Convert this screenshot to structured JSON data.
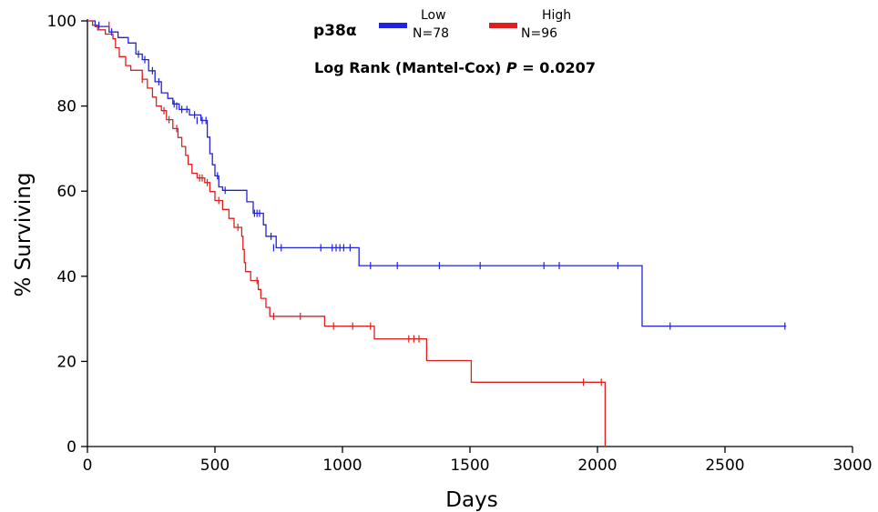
{
  "chart_data": {
    "type": "line",
    "subtype": "kaplan-meier",
    "xlabel": "Days",
    "ylabel": "% Surviving",
    "xlim": [
      0,
      3000
    ],
    "ylim": [
      0,
      100
    ],
    "xticks": [
      0,
      500,
      1000,
      1500,
      2000,
      2500,
      3000
    ],
    "yticks": [
      0,
      20,
      40,
      60,
      80,
      100
    ],
    "legend": {
      "title": "p38α",
      "placement": "top-center"
    },
    "annotation": {
      "prefix": "Log Rank (Mantel-Cox) ",
      "p_symbol": "P",
      "value": " = 0.0207"
    },
    "series": [
      {
        "name": "Low",
        "n_label": "N=78",
        "color": "#2222dd",
        "steps": [
          [
            0,
            100
          ],
          [
            30,
            98.7
          ],
          [
            85,
            97.4
          ],
          [
            120,
            96.1
          ],
          [
            160,
            94.8
          ],
          [
            190,
            92.2
          ],
          [
            215,
            90.9
          ],
          [
            240,
            88.3
          ],
          [
            265,
            85.7
          ],
          [
            290,
            83.1
          ],
          [
            315,
            81.8
          ],
          [
            335,
            80.5
          ],
          [
            360,
            79.2
          ],
          [
            400,
            77.9
          ],
          [
            445,
            76.6
          ],
          [
            470,
            72.7
          ],
          [
            480,
            68.8
          ],
          [
            490,
            66.2
          ],
          [
            500,
            63.6
          ],
          [
            515,
            61.0
          ],
          [
            530,
            60.2
          ],
          [
            625,
            57.5
          ],
          [
            650,
            54.8
          ],
          [
            690,
            52.1
          ],
          [
            700,
            49.4
          ],
          [
            740,
            46.7
          ],
          [
            1065,
            42.5
          ],
          [
            2175,
            42.5
          ],
          [
            2175,
            28.3
          ],
          [
            2740,
            28.3
          ]
        ],
        "censored": [
          [
            45,
            99
          ],
          [
            95,
            97.4
          ],
          [
            200,
            92.2
          ],
          [
            225,
            90.9
          ],
          [
            255,
            88.3
          ],
          [
            280,
            85.7
          ],
          [
            340,
            80.5
          ],
          [
            350,
            80
          ],
          [
            370,
            79.2
          ],
          [
            390,
            79.2
          ],
          [
            420,
            77.9
          ],
          [
            430,
            76.6
          ],
          [
            450,
            76.6
          ],
          [
            465,
            76.6
          ],
          [
            510,
            63.6
          ],
          [
            540,
            60.2
          ],
          [
            655,
            54.8
          ],
          [
            665,
            54.8
          ],
          [
            675,
            54.8
          ],
          [
            720,
            49.4
          ],
          [
            730,
            46.7
          ],
          [
            760,
            46.7
          ],
          [
            915,
            46.7
          ],
          [
            960,
            46.7
          ],
          [
            975,
            46.7
          ],
          [
            990,
            46.7
          ],
          [
            1005,
            46.7
          ],
          [
            1030,
            46.7
          ],
          [
            1110,
            42.5
          ],
          [
            1215,
            42.5
          ],
          [
            1380,
            42.5
          ],
          [
            1540,
            42.5
          ],
          [
            1790,
            42.5
          ],
          [
            1850,
            42.5
          ],
          [
            2080,
            42.5
          ],
          [
            2285,
            28.3
          ],
          [
            2735,
            28.3
          ]
        ]
      },
      {
        "name": "High",
        "n_label": "N=96",
        "color": "#dd1f1f",
        "steps": [
          [
            0,
            100
          ],
          [
            20,
            99
          ],
          [
            40,
            97.9
          ],
          [
            70,
            96.9
          ],
          [
            100,
            95.8
          ],
          [
            110,
            93.7
          ],
          [
            125,
            91.6
          ],
          [
            150,
            89.5
          ],
          [
            170,
            88.4
          ],
          [
            215,
            86.3
          ],
          [
            235,
            84.2
          ],
          [
            255,
            82.1
          ],
          [
            270,
            80.0
          ],
          [
            290,
            78.9
          ],
          [
            310,
            76.8
          ],
          [
            335,
            74.7
          ],
          [
            355,
            72.6
          ],
          [
            370,
            70.5
          ],
          [
            385,
            68.4
          ],
          [
            395,
            66.3
          ],
          [
            410,
            64.2
          ],
          [
            430,
            63.1
          ],
          [
            460,
            62.0
          ],
          [
            480,
            59.9
          ],
          [
            500,
            57.8
          ],
          [
            530,
            55.7
          ],
          [
            555,
            53.6
          ],
          [
            575,
            51.5
          ],
          [
            605,
            49.4
          ],
          [
            610,
            46.3
          ],
          [
            615,
            43.2
          ],
          [
            620,
            41.1
          ],
          [
            640,
            39.0
          ],
          [
            650,
            39.0
          ],
          [
            670,
            36.9
          ],
          [
            680,
            34.8
          ],
          [
            700,
            32.7
          ],
          [
            715,
            30.6
          ],
          [
            930,
            28.3
          ],
          [
            1125,
            25.3
          ],
          [
            1330,
            20.2
          ],
          [
            1505,
            15.1
          ],
          [
            2030,
            15.1
          ],
          [
            2030,
            0
          ]
        ],
        "censored": [
          [
            85,
            99
          ],
          [
            215,
            86.3
          ],
          [
            300,
            78.9
          ],
          [
            320,
            76.8
          ],
          [
            350,
            74.7
          ],
          [
            440,
            63.1
          ],
          [
            450,
            63.1
          ],
          [
            470,
            62.0
          ],
          [
            515,
            57.8
          ],
          [
            590,
            51.5
          ],
          [
            665,
            39.0
          ],
          [
            730,
            30.6
          ],
          [
            835,
            30.6
          ],
          [
            965,
            28.3
          ],
          [
            1040,
            28.3
          ],
          [
            1110,
            28.3
          ],
          [
            1260,
            25.3
          ],
          [
            1280,
            25.3
          ],
          [
            1300,
            25.3
          ],
          [
            1945,
            15.1
          ],
          [
            2015,
            15.1
          ]
        ]
      }
    ]
  }
}
